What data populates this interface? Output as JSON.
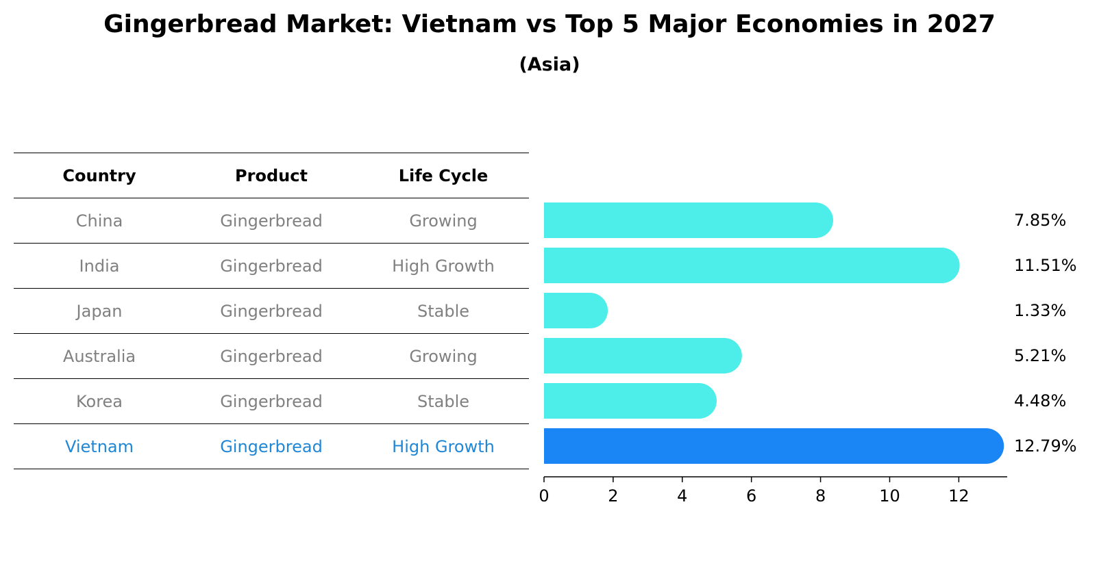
{
  "header": {
    "title": "Gingerbread Market: Vietnam vs Top 5 Major Economies in 2027",
    "subtitle": "(Asia)"
  },
  "table": {
    "columns": [
      "Country",
      "Product",
      "Life Cycle"
    ],
    "rows": [
      {
        "country": "China",
        "product": "Gingerbread",
        "life_cycle": "Growing"
      },
      {
        "country": "India",
        "product": "Gingerbread",
        "life_cycle": "High Growth"
      },
      {
        "country": "Japan",
        "product": "Gingerbread",
        "life_cycle": "Stable"
      },
      {
        "country": "Australia",
        "product": "Gingerbread",
        "life_cycle": "Growing"
      },
      {
        "country": "Korea",
        "product": "Gingerbread",
        "life_cycle": "Stable"
      },
      {
        "country": "Vietnam",
        "product": "Gingerbread",
        "life_cycle": "High Growth"
      }
    ],
    "highlight_color": "#1f87d6",
    "text_color": "#808080"
  },
  "chart_data": {
    "type": "bar",
    "orientation": "horizontal",
    "title": "Gingerbread Market: Vietnam vs Top 5 Major Economies in 2027",
    "subtitle": "(Asia)",
    "categories": [
      "China",
      "India",
      "Japan",
      "Australia",
      "Korea",
      "Vietnam"
    ],
    "values": [
      7.85,
      11.51,
      1.33,
      5.21,
      4.48,
      12.79
    ],
    "value_labels": [
      "7.85%",
      "11.51%",
      "1.33%",
      "5.21%",
      "4.48%",
      "12.79%"
    ],
    "highlight_index": 5,
    "colors": {
      "default": "#4deeea",
      "highlight": "#1a85f5"
    },
    "xlim": [
      0,
      13.4
    ],
    "xticks": [
      0,
      2,
      4,
      6,
      8,
      10,
      12
    ],
    "xlabel": "",
    "ylabel": "",
    "grid": false
  }
}
